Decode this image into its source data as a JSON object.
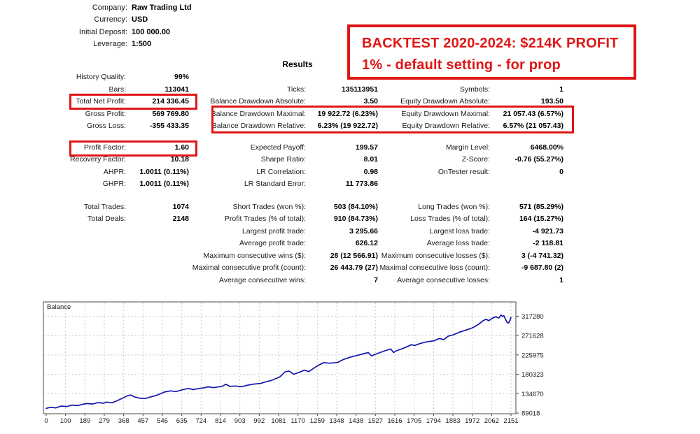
{
  "account": {
    "fields": [
      {
        "label": "Company:",
        "value": "Raw Trading Ltd"
      },
      {
        "label": "Currency:",
        "value": "USD"
      },
      {
        "label": "Initial Deposit:",
        "value": "100 000.00"
      },
      {
        "label": "Leverage:",
        "value": "1:500"
      }
    ]
  },
  "banner": {
    "line1": "BACKTEST 2020-2024: $214K PROFIT",
    "line2": "1% - default setting - for prop",
    "color": "#e01616"
  },
  "results_title": "Results",
  "stats": {
    "groups": [
      {
        "rows": [
          {
            "l1": "History Quality:",
            "v1": "99%"
          },
          {
            "l1": "Bars:",
            "v1": "113041",
            "l2": "Ticks:",
            "v2": "135113951",
            "l3": "Symbols:",
            "v3": "1"
          },
          {
            "l1": "Total Net Profit:",
            "v1": "214 336.45",
            "l2": "Balance Drawdown Absolute:",
            "v2": "3.50",
            "l3": "Equity Drawdown Absolute:",
            "v3": "193.50"
          },
          {
            "l1": "Gross Profit:",
            "v1": "569 769.80",
            "l2": "Balance Drawdown Maximal:",
            "v2": "19 922.72 (6.23%)",
            "l3": "Equity Drawdown Maximal:",
            "v3": "21 057.43 (6.57%)"
          },
          {
            "l1": "Gross Loss:",
            "v1": "-355 433.35",
            "l2": "Balance Drawdown Relative:",
            "v2": "6.23% (19 922.72)",
            "l3": "Equity Drawdown Relative:",
            "v3": "6.57% (21 057.43)"
          }
        ]
      },
      {
        "rows": [
          {
            "l1": "Profit Factor:",
            "v1": "1.60",
            "l2": "Expected Payoff:",
            "v2": "199.57",
            "l3": "Margin Level:",
            "v3": "6468.00%"
          },
          {
            "l1": "Recovery Factor:",
            "v1": "10.18",
            "l2": "Sharpe Ratio:",
            "v2": "8.01",
            "l3": "Z-Score:",
            "v3": "-0.76 (55.27%)"
          },
          {
            "l1": "AHPR:",
            "v1": "1.0011 (0.11%)",
            "l2": "LR Correlation:",
            "v2": "0.98",
            "l3": "OnTester result:",
            "v3": "0"
          },
          {
            "l1": "GHPR:",
            "v1": "1.0011 (0.11%)",
            "l2": "LR Standard Error:",
            "v2": "11 773.86"
          }
        ]
      },
      {
        "rows": [
          {
            "l1": "Total Trades:",
            "v1": "1074",
            "l2": "Short Trades (won %):",
            "v2": "503 (84.10%)",
            "l3": "Long Trades (won %):",
            "v3": "571 (85.29%)"
          },
          {
            "l1": "Total Deals:",
            "v1": "2148",
            "l2": "Profit Trades (% of total):",
            "v2": "910 (84.73%)",
            "l3": "Loss Trades (% of total):",
            "v3": "164 (15.27%)"
          },
          {
            "l2": "Largest profit trade:",
            "v2": "3 295.66",
            "l3": "Largest loss trade:",
            "v3": "-4 921.73"
          },
          {
            "l2": "Average profit trade:",
            "v2": "626.12",
            "l3": "Average loss trade:",
            "v3": "-2 118.81"
          },
          {
            "l2": "Maximum consecutive wins ($):",
            "v2": "28 (12 566.91)",
            "l3": "Maximum consecutive losses ($):",
            "v3": "3 (-4 741.32)"
          },
          {
            "l2": "Maximal consecutive profit (count):",
            "v2": "26 443.79 (27)",
            "l3": "Maximal consecutive loss (count):",
            "v3": "-9 687.80 (2)"
          },
          {
            "l2": "Average consecutive wins:",
            "v2": "7",
            "l3": "Average consecutive losses:",
            "v3": "1"
          }
        ]
      }
    ]
  },
  "chart_data": {
    "type": "line",
    "title": "Balance",
    "xlabel": "",
    "ylabel": "",
    "x_ticks": [
      0,
      100,
      189,
      279,
      368,
      457,
      546,
      635,
      724,
      814,
      903,
      992,
      1081,
      1170,
      1259,
      1348,
      1438,
      1527,
      1616,
      1705,
      1794,
      1883,
      1972,
      2062,
      2151
    ],
    "y_ticks": [
      89018,
      134670,
      180323,
      225975,
      271628,
      317280
    ],
    "xlim": [
      0,
      2151
    ],
    "ylim": [
      89018,
      351000
    ],
    "grid": true,
    "line_color": "#1414b0",
    "grid_color": "#c9c9c9",
    "series": [
      {
        "name": "Balance",
        "points": [
          [
            0,
            100000
          ],
          [
            20,
            102500
          ],
          [
            45,
            101200
          ],
          [
            70,
            105500
          ],
          [
            95,
            104300
          ],
          [
            120,
            107800
          ],
          [
            145,
            106500
          ],
          [
            170,
            109800
          ],
          [
            189,
            111500
          ],
          [
            215,
            110200
          ],
          [
            240,
            113500
          ],
          [
            265,
            112200
          ],
          [
            279,
            114800
          ],
          [
            305,
            113200
          ],
          [
            330,
            118500
          ],
          [
            355,
            124500
          ],
          [
            375,
            129500
          ],
          [
            390,
            131500
          ],
          [
            410,
            126800
          ],
          [
            435,
            123800
          ],
          [
            457,
            123200
          ],
          [
            480,
            126500
          ],
          [
            510,
            130500
          ],
          [
            546,
            138500
          ],
          [
            575,
            141200
          ],
          [
            600,
            139600
          ],
          [
            635,
            144500
          ],
          [
            660,
            147200
          ],
          [
            680,
            144200
          ],
          [
            705,
            146800
          ],
          [
            724,
            147800
          ],
          [
            750,
            150800
          ],
          [
            775,
            148800
          ],
          [
            814,
            152200
          ],
          [
            832,
            156800
          ],
          [
            850,
            151800
          ],
          [
            875,
            152800
          ],
          [
            903,
            151000
          ],
          [
            930,
            154500
          ],
          [
            960,
            157200
          ],
          [
            992,
            158800
          ],
          [
            1015,
            162500
          ],
          [
            1040,
            165500
          ],
          [
            1081,
            174000
          ],
          [
            1105,
            186000
          ],
          [
            1124,
            188000
          ],
          [
            1145,
            180500
          ],
          [
            1170,
            185000
          ],
          [
            1195,
            190000
          ],
          [
            1215,
            186800
          ],
          [
            1259,
            201500
          ],
          [
            1285,
            208000
          ],
          [
            1310,
            206500
          ],
          [
            1348,
            208200
          ],
          [
            1375,
            215200
          ],
          [
            1410,
            221200
          ],
          [
            1438,
            224800
          ],
          [
            1465,
            228200
          ],
          [
            1490,
            231800
          ],
          [
            1505,
            223800
          ],
          [
            1527,
            228200
          ],
          [
            1562,
            234800
          ],
          [
            1594,
            240200
          ],
          [
            1608,
            231800
          ],
          [
            1616,
            234800
          ],
          [
            1650,
            241200
          ],
          [
            1675,
            246800
          ],
          [
            1690,
            250200
          ],
          [
            1705,
            248200
          ],
          [
            1730,
            252800
          ],
          [
            1760,
            256800
          ],
          [
            1794,
            259200
          ],
          [
            1820,
            264800
          ],
          [
            1840,
            262200
          ],
          [
            1860,
            270300
          ],
          [
            1883,
            273200
          ],
          [
            1910,
            279200
          ],
          [
            1940,
            284200
          ],
          [
            1972,
            289800
          ],
          [
            2000,
            297800
          ],
          [
            2020,
            306200
          ],
          [
            2035,
            310200
          ],
          [
            2048,
            306800
          ],
          [
            2062,
            311800
          ],
          [
            2080,
            316200
          ],
          [
            2095,
            313200
          ],
          [
            2105,
            320200
          ],
          [
            2112,
            316800
          ],
          [
            2118,
            318600
          ],
          [
            2132,
            303600
          ],
          [
            2140,
            301200
          ],
          [
            2146,
            307800
          ],
          [
            2151,
            314336
          ]
        ]
      }
    ]
  }
}
